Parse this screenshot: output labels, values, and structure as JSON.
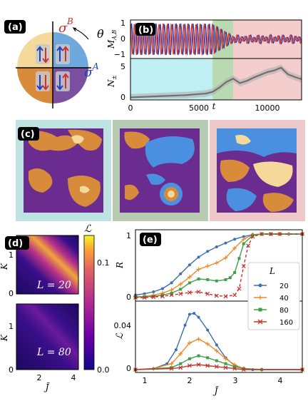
{
  "panels": {
    "a": {
      "tag": "(a)",
      "sigma_b": "σ",
      "sigma_b_sup": "B",
      "sigma_a": "σ",
      "sigma_a_sup": "A",
      "theta": "θ",
      "colors": {
        "top_left": "#f5d99a",
        "top_right": "#6fa8dc",
        "bottom_left": "#d98b3c",
        "bottom_right": "#7b4fa0"
      }
    },
    "b": {
      "tag": "(b)",
      "ylabel_top": "M",
      "ylabel_top_sub": "A,B",
      "ylabel_bottom": "N",
      "ylabel_bottom_sub": "±",
      "t_label": "t",
      "top_yticks": [
        "1",
        "0",
        "−1"
      ],
      "bottom_yticks": [
        "5",
        "0"
      ],
      "xticks": [
        "0",
        "5000",
        "10000"
      ],
      "region_colors": {
        "early": "#bfeff2",
        "middle": "#b9d9b0",
        "late": "#f4cdcd"
      }
    },
    "c": {
      "tag": "(c)",
      "frame_colors": [
        "#bfe3e3",
        "#b7cbb2",
        "#eec9c9"
      ]
    },
    "d": {
      "tag": "(d)",
      "ylabel": "K",
      "xlabel": "J̃",
      "yticks_top": [
        "1",
        "0"
      ],
      "yticks_bottom": [
        "1",
        "0"
      ],
      "xticks": [
        "2",
        "4"
      ],
      "label_top": "L = 20",
      "label_bottom": "L = 80",
      "colorbar_label": "ℒ",
      "colorbar_ticks": [
        "0.1",
        "0.0"
      ]
    },
    "e": {
      "tag": "(e)",
      "ylabel_top": "R",
      "ylabel_bottom": "ℒ",
      "xlabel": "J̃",
      "top_yticks": [
        "1",
        "0"
      ],
      "bottom_yticks": [
        "0.04",
        "0"
      ],
      "xticks": [
        "1",
        "2",
        "3",
        "4"
      ],
      "legend_title": "L",
      "legend": [
        {
          "label": "20",
          "color": "#3a6fb0",
          "marker": "circle"
        },
        {
          "label": "40",
          "color": "#f08a24",
          "marker": "cross"
        },
        {
          "label": "80",
          "color": "#3fa04a",
          "marker": "square"
        },
        {
          "label": "160",
          "color": "#c8302c",
          "marker": "x"
        }
      ]
    }
  },
  "chart_data": [
    {
      "type": "line",
      "panel": "b-top",
      "xlim": [
        0,
        12500
      ],
      "ylim": [
        -1,
        1
      ],
      "series": [
        {
          "color": "#1f3fbf",
          "x": [
            0,
            6000,
            7500,
            12500
          ],
          "y": [
            1,
            1,
            0.2,
            0.2
          ]
        },
        {
          "color": "#d63a2a",
          "x": [
            0,
            6000,
            7500,
            12500
          ],
          "y": [
            -1,
            -1,
            0.2,
            0.2
          ]
        }
      ]
    },
    {
      "type": "line",
      "panel": "b-bottom",
      "xlim": [
        0,
        12500
      ],
      "ylim": [
        0,
        7
      ],
      "series": [
        {
          "color": "#707070",
          "x": [
            0,
            1000,
            2000,
            3000,
            4000,
            5000,
            5500,
            6000,
            6500,
            7000,
            7500,
            8000,
            8500,
            9000,
            9500,
            10000,
            10500,
            11000,
            11500,
            12000,
            12500
          ],
          "y": [
            0.2,
            0.3,
            0.4,
            0.5,
            0.6,
            0.8,
            0.9,
            1.2,
            2.0,
            3.0,
            3.6,
            2.8,
            3.2,
            3.8,
            4.3,
            4.8,
            5.1,
            5.6,
            4.4,
            3.9,
            3.5
          ]
        }
      ]
    },
    {
      "type": "line",
      "panel": "e-top",
      "xlabel": "J̃",
      "ylabel": "R",
      "xlim": [
        0.8,
        4.5
      ],
      "ylim": [
        0,
        1
      ],
      "series": [
        {
          "name": "20",
          "x": [
            0.8,
            1.0,
            1.2,
            1.4,
            1.6,
            1.8,
            2.0,
            2.2,
            2.4,
            2.6,
            2.8,
            3.0,
            3.2,
            3.4,
            3.6,
            3.8,
            4.0,
            4.2,
            4.5
          ],
          "y": [
            0.05,
            0.07,
            0.1,
            0.15,
            0.24,
            0.38,
            0.52,
            0.64,
            0.73,
            0.8,
            0.86,
            0.92,
            0.96,
            0.99,
            1.0,
            1.0,
            1.0,
            1.0,
            1.0
          ]
        },
        {
          "name": "40",
          "x": [
            0.8,
            1.0,
            1.2,
            1.4,
            1.6,
            1.8,
            2.0,
            2.2,
            2.4,
            2.6,
            2.8,
            3.0,
            3.2,
            3.4,
            3.6,
            3.8,
            4.0,
            4.2,
            4.5
          ],
          "y": [
            0.02,
            0.03,
            0.05,
            0.08,
            0.13,
            0.22,
            0.33,
            0.45,
            0.5,
            0.55,
            0.63,
            0.78,
            0.92,
            0.99,
            1.0,
            1.0,
            1.0,
            1.0,
            1.0
          ]
        },
        {
          "name": "80",
          "x": [
            0.8,
            1.0,
            1.2,
            1.4,
            1.6,
            1.8,
            2.0,
            2.2,
            2.4,
            2.6,
            2.8,
            2.9,
            3.0,
            3.1,
            3.2,
            3.4,
            3.6,
            3.8,
            4.0,
            4.5
          ],
          "y": [
            0.02,
            0.02,
            0.03,
            0.05,
            0.08,
            0.14,
            0.24,
            0.3,
            0.29,
            0.27,
            0.29,
            0.32,
            0.4,
            0.62,
            0.85,
            0.98,
            1.0,
            1.0,
            1.0,
            1.0
          ]
        },
        {
          "name": "160",
          "x": [
            0.8,
            1.0,
            1.2,
            1.4,
            1.6,
            1.8,
            2.0,
            2.2,
            2.4,
            2.6,
            2.8,
            3.0,
            3.1,
            3.2,
            3.3,
            3.4,
            3.6,
            3.8,
            4.0,
            4.5
          ],
          "y": [
            0.01,
            0.01,
            0.02,
            0.03,
            0.05,
            0.07,
            0.09,
            0.1,
            0.07,
            0.04,
            0.03,
            0.05,
            0.15,
            0.5,
            0.82,
            0.96,
            1.0,
            1.0,
            1.0,
            1.0
          ]
        }
      ]
    },
    {
      "type": "line",
      "panel": "e-bottom",
      "xlabel": "J̃",
      "ylabel": "ℒ",
      "xlim": [
        0.8,
        4.5
      ],
      "ylim": [
        0,
        0.065
      ],
      "series": [
        {
          "name": "20",
          "x": [
            0.8,
            1.2,
            1.5,
            1.7,
            1.9,
            2.0,
            2.1,
            2.2,
            2.4,
            2.6,
            2.8,
            3.0,
            3.2,
            3.4,
            3.6,
            4.5
          ],
          "y": [
            0.0,
            0.001,
            0.006,
            0.02,
            0.045,
            0.056,
            0.057,
            0.053,
            0.04,
            0.025,
            0.012,
            0.004,
            0.001,
            0.0,
            0.0,
            0.0
          ]
        },
        {
          "name": "40",
          "x": [
            0.8,
            1.2,
            1.6,
            1.8,
            2.0,
            2.2,
            2.4,
            2.6,
            2.8,
            3.0,
            3.2,
            3.6,
            4.5
          ],
          "y": [
            0.0,
            0.001,
            0.006,
            0.016,
            0.027,
            0.031,
            0.026,
            0.019,
            0.011,
            0.005,
            0.001,
            0.0,
            0.0
          ]
        },
        {
          "name": "80",
          "x": [
            0.8,
            1.6,
            1.8,
            2.0,
            2.2,
            2.4,
            2.6,
            2.8,
            3.0,
            3.2,
            3.6,
            4.5
          ],
          "y": [
            0.0,
            0.002,
            0.006,
            0.011,
            0.014,
            0.012,
            0.009,
            0.006,
            0.003,
            0.001,
            0.0,
            0.0
          ]
        },
        {
          "name": "160",
          "x": [
            0.8,
            1.6,
            1.8,
            2.0,
            2.2,
            2.4,
            2.6,
            2.8,
            3.0,
            3.2,
            4.5
          ],
          "y": [
            0.0,
            0.001,
            0.002,
            0.004,
            0.005,
            0.004,
            0.003,
            0.002,
            0.001,
            0.0,
            0.0
          ]
        }
      ]
    }
  ]
}
